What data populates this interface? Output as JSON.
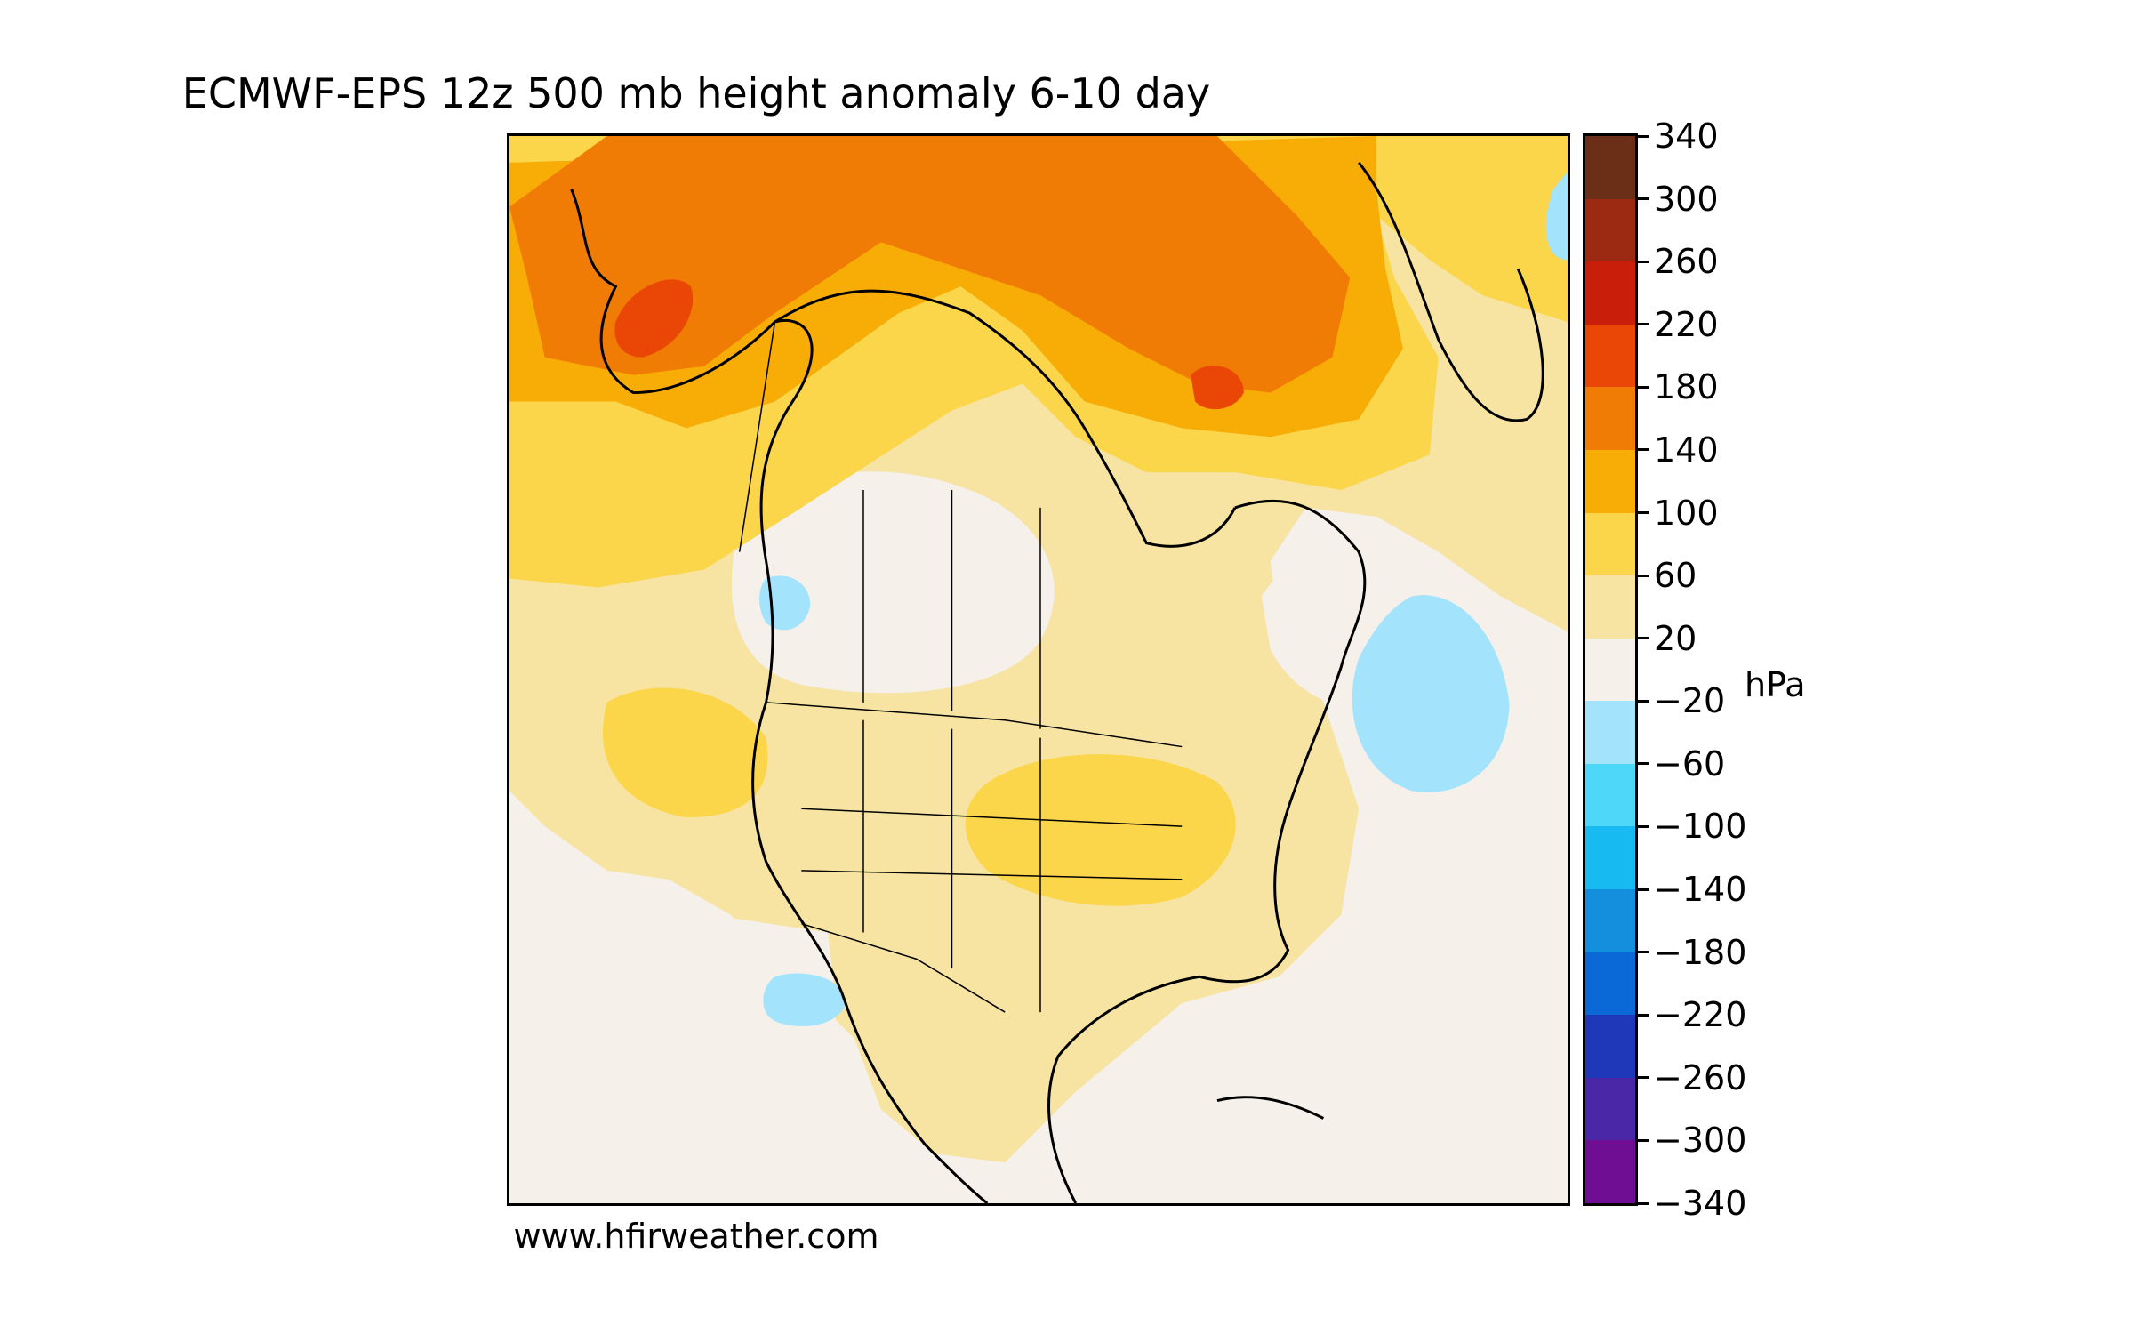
{
  "title": "ECMWF-EPS 12z 500 mb height anomaly 6-10 day",
  "credit": "www.hfirweather.com",
  "colorbar": {
    "unit": "hPa",
    "tick_labels": [
      "340",
      "300",
      "260",
      "220",
      "180",
      "140",
      "100",
      "60",
      "20",
      "−20",
      "−60",
      "−100",
      "−140",
      "−180",
      "−220",
      "−260",
      "−300",
      "−340"
    ],
    "bins": [
      {
        "from": 300,
        "to": 340,
        "color": "#6b2f17"
      },
      {
        "from": 260,
        "to": 300,
        "color": "#9c2a12"
      },
      {
        "from": 220,
        "to": 260,
        "color": "#c81e0a"
      },
      {
        "from": 180,
        "to": 220,
        "color": "#ea4707"
      },
      {
        "from": 140,
        "to": 180,
        "color": "#f07c05"
      },
      {
        "from": 100,
        "to": 140,
        "color": "#f8ac06"
      },
      {
        "from": 60,
        "to": 100,
        "color": "#fbd54a"
      },
      {
        "from": 20,
        "to": 60,
        "color": "#f7e4a3"
      },
      {
        "from": -20,
        "to": 20,
        "color": "#f5f0ea"
      },
      {
        "from": -60,
        "to": -20,
        "color": "#a3e3fb"
      },
      {
        "from": -100,
        "to": -60,
        "color": "#4fd7f9"
      },
      {
        "from": -140,
        "to": -100,
        "color": "#17baf1"
      },
      {
        "from": -180,
        "to": -140,
        "color": "#138fdd"
      },
      {
        "from": -220,
        "to": -180,
        "color": "#0a69d6"
      },
      {
        "from": -260,
        "to": -220,
        "color": "#1f38b9"
      },
      {
        "from": -300,
        "to": -260,
        "color": "#4927a6"
      },
      {
        "from": -340,
        "to": -300,
        "color": "#700e93"
      }
    ]
  },
  "map": {
    "region": "North America",
    "field": "500 mb height anomaly"
  }
}
